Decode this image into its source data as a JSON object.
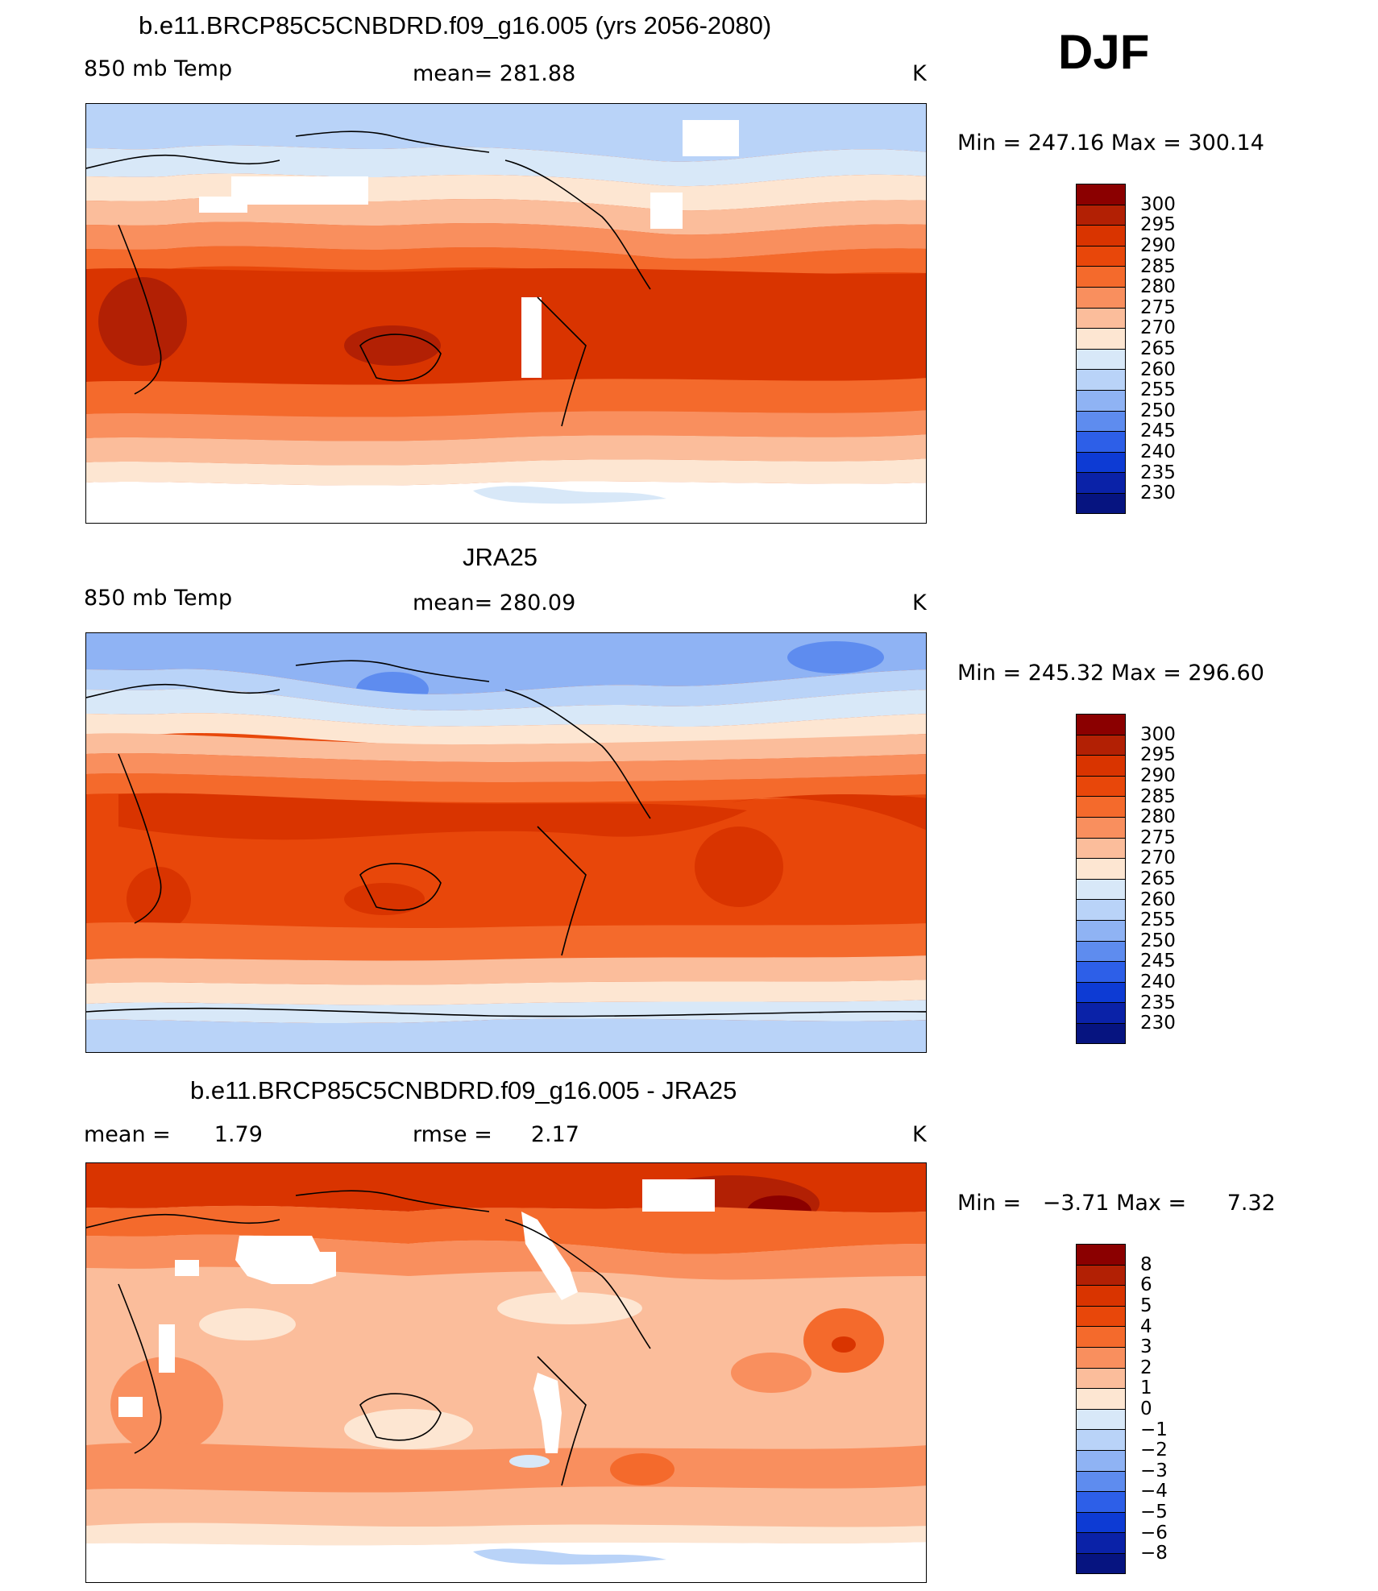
{
  "season": "DJF",
  "panels": [
    {
      "title": "b.e11.BRCP85C5CNBDRD.f09_g16.005 (yrs 2056-2080)",
      "left_label": "850 mb Temp",
      "center_label": "mean= 281.88",
      "units": "K",
      "min_label": "Min",
      "min_value": "247.16",
      "max_label": "Max",
      "max_value": "300.14",
      "colorbar_levels": [
        "300",
        "295",
        "290",
        "285",
        "280",
        "275",
        "270",
        "265",
        "260",
        "255",
        "250",
        "245",
        "240",
        "235",
        "230"
      ]
    },
    {
      "title": "JRA25",
      "left_label": "850 mb Temp",
      "center_label": "mean= 280.09",
      "units": "K",
      "min_label": "Min",
      "min_value": "245.32",
      "max_label": "Max",
      "max_value": "296.60",
      "colorbar_levels": [
        "300",
        "295",
        "290",
        "285",
        "280",
        "275",
        "270",
        "265",
        "260",
        "255",
        "250",
        "245",
        "240",
        "235",
        "230"
      ]
    },
    {
      "title": "b.e11.BRCP85C5CNBDRD.f09_g16.005 - JRA25",
      "left_label": "mean =",
      "left_value": "1.79",
      "center_label": "rmse =",
      "center_value": "2.17",
      "units": "K",
      "min_label": "Min",
      "min_value": "−3.71",
      "max_label": "Max",
      "max_value": "7.32",
      "colorbar_levels": [
        "8",
        "6",
        "5",
        "4",
        "3",
        "2",
        "1",
        "0",
        "−1",
        "−2",
        "−3",
        "−4",
        "−5",
        "−6",
        "−8"
      ]
    }
  ],
  "colors": {
    "abs_scale": [
      "#8b0000",
      "#b22004",
      "#d93400",
      "#e8470a",
      "#f46a2c",
      "#f98f5e",
      "#fbbd9b",
      "#fde6d2",
      "#d8e8f8",
      "#b9d3f8",
      "#8fb3f4",
      "#5e8cef",
      "#2d5fe8",
      "#0d3bd4",
      "#0a22a8",
      "#061480"
    ],
    "diff_scale": [
      "#8b0000",
      "#b22004",
      "#d93400",
      "#e8470a",
      "#f46a2c",
      "#f98f5e",
      "#fbbd9b",
      "#fde6d2",
      "#d8e8f8",
      "#b9d3f8",
      "#8fb3f4",
      "#5e8cef",
      "#2d5fe8",
      "#0d3bd4",
      "#0a22a8",
      "#061480"
    ]
  }
}
